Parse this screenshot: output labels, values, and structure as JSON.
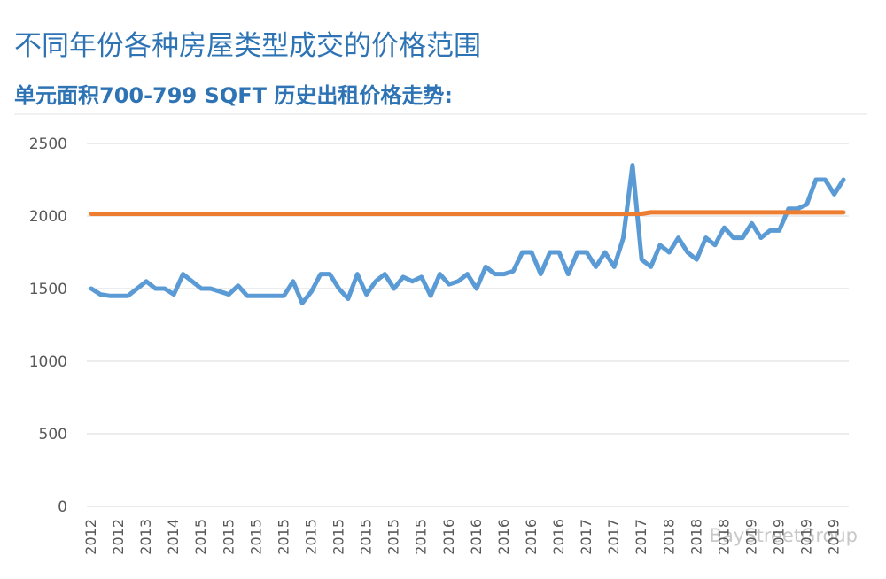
{
  "chart_data": {
    "type": "line",
    "title": "不同年份各种房屋类型成交的价格范围",
    "subtitle": "单元面积700-799 SQFT 历史出租价格走势:",
    "watermark": "BayStreetGroup",
    "categories": [
      "2012",
      null,
      null,
      "2012",
      null,
      null,
      "2013",
      null,
      null,
      "2014",
      null,
      null,
      "2015",
      null,
      null,
      "2015",
      null,
      null,
      "2015",
      null,
      null,
      "2015",
      null,
      null,
      "2015",
      null,
      null,
      "2015",
      null,
      null,
      "2015",
      null,
      null,
      "2015",
      null,
      null,
      "2015",
      null,
      null,
      "2016",
      null,
      null,
      "2016",
      null,
      null,
      "2016",
      null,
      null,
      "2016",
      null,
      null,
      "2016",
      null,
      null,
      "2017",
      null,
      null,
      "2017",
      null,
      null,
      "2017",
      null,
      null,
      "2018",
      null,
      null,
      "2018",
      null,
      null,
      "2018",
      null,
      null,
      "2019",
      null,
      null,
      "2019",
      null,
      null,
      "2019",
      null,
      null,
      "2019",
      null
    ],
    "series": [
      {
        "color": "#5b9bd5",
        "values": [
          1500,
          1460,
          1450,
          1450,
          1450,
          1500,
          1550,
          1500,
          1500,
          1460,
          1600,
          1550,
          1500,
          1500,
          1480,
          1460,
          1520,
          1450,
          1450,
          1450,
          1450,
          1450,
          1550,
          1400,
          1480,
          1600,
          1600,
          1500,
          1430,
          1600,
          1460,
          1550,
          1600,
          1500,
          1580,
          1550,
          1580,
          1450,
          1600,
          1530,
          1550,
          1600,
          1500,
          1650,
          1600,
          1600,
          1620,
          1750,
          1750,
          1600,
          1750,
          1750,
          1600,
          1750,
          1750,
          1650,
          1750,
          1650,
          1850,
          2350,
          1700,
          1650,
          1800,
          1750,
          1850,
          1750,
          1700,
          1850,
          1800,
          1920,
          1850,
          1850,
          1950,
          1850,
          1900,
          1900,
          2050,
          2050,
          2080,
          2250,
          2250,
          2150,
          2250
        ]
      },
      {
        "color": "#ed7d31",
        "values": [
          2015,
          2015,
          2015,
          2015,
          2015,
          2015,
          2015,
          2015,
          2015,
          2015,
          2015,
          2015,
          2015,
          2015,
          2015,
          2015,
          2015,
          2015,
          2015,
          2015,
          2015,
          2015,
          2015,
          2015,
          2015,
          2015,
          2015,
          2015,
          2015,
          2015,
          2015,
          2015,
          2015,
          2015,
          2015,
          2015,
          2015,
          2015,
          2015,
          2015,
          2015,
          2015,
          2015,
          2015,
          2015,
          2015,
          2015,
          2015,
          2015,
          2015,
          2015,
          2015,
          2015,
          2015,
          2015,
          2015,
          2015,
          2015,
          2015,
          2015,
          2015,
          2025,
          2025,
          2025,
          2025,
          2025,
          2025,
          2025,
          2025,
          2025,
          2025,
          2025,
          2025,
          2025,
          2025,
          2025,
          2025,
          2025,
          2025,
          2025,
          2025,
          2025,
          2025
        ]
      }
    ],
    "ylim": [
      0,
      2500
    ],
    "yticks": [
      0,
      500,
      1000,
      1500,
      2000,
      2500
    ],
    "grid": true
  }
}
